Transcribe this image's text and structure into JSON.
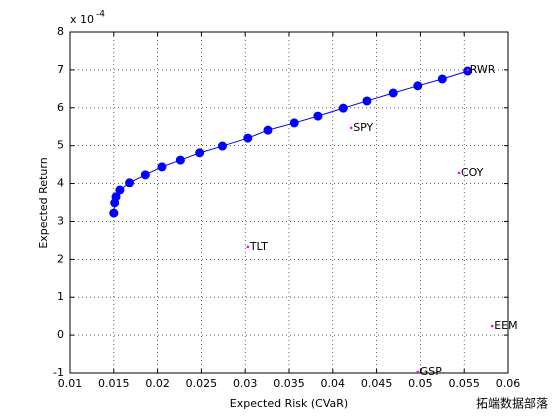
{
  "chart_data": {
    "type": "line",
    "x_label": "Expected Risk (CVaR)",
    "y_label": "Expected Return",
    "y_exponent_base": "x 10",
    "y_exponent": "-4",
    "xlim": [
      0.01,
      0.06
    ],
    "xticks": [
      0.01,
      0.015,
      0.02,
      0.025,
      0.03,
      0.035,
      0.04,
      0.045,
      0.05,
      0.055,
      0.06
    ],
    "ylim": [
      -1,
      8
    ],
    "yticks": [
      -1,
      0,
      1,
      2,
      3,
      4,
      5,
      6,
      7,
      8
    ],
    "grid": true,
    "color": "#0000ff",
    "x": [
      0.015,
      0.0151,
      0.01525,
      0.0157,
      0.0168,
      0.0186,
      0.0205,
      0.0226,
      0.0248,
      0.0274,
      0.0303,
      0.0326,
      0.0356,
      0.0383,
      0.0412,
      0.0439,
      0.0469,
      0.0497,
      0.0525,
      0.0554
    ],
    "values": [
      3.22,
      3.49,
      3.65,
      3.83,
      4.02,
      4.23,
      4.44,
      4.62,
      4.81,
      4.99,
      5.2,
      5.41,
      5.6,
      5.78,
      5.99,
      6.18,
      6.39,
      6.58,
      6.76,
      6.97
    ],
    "points_color": "#ff00ff",
    "points": [
      {
        "label": "TLT",
        "x": 0.0303,
        "y": 2.33
      },
      {
        "label": "SPY",
        "x": 0.0421,
        "y": 5.47
      },
      {
        "label": "COY",
        "x": 0.0544,
        "y": 4.28
      },
      {
        "label": "EEM",
        "x": 0.0582,
        "y": 0.24
      },
      {
        "label": "GSP",
        "x": 0.0497,
        "y": -0.97
      },
      {
        "label": "RWR",
        "x": 0.0554,
        "y": 7.0
      }
    ]
  },
  "watermark": "拓端数据部落"
}
